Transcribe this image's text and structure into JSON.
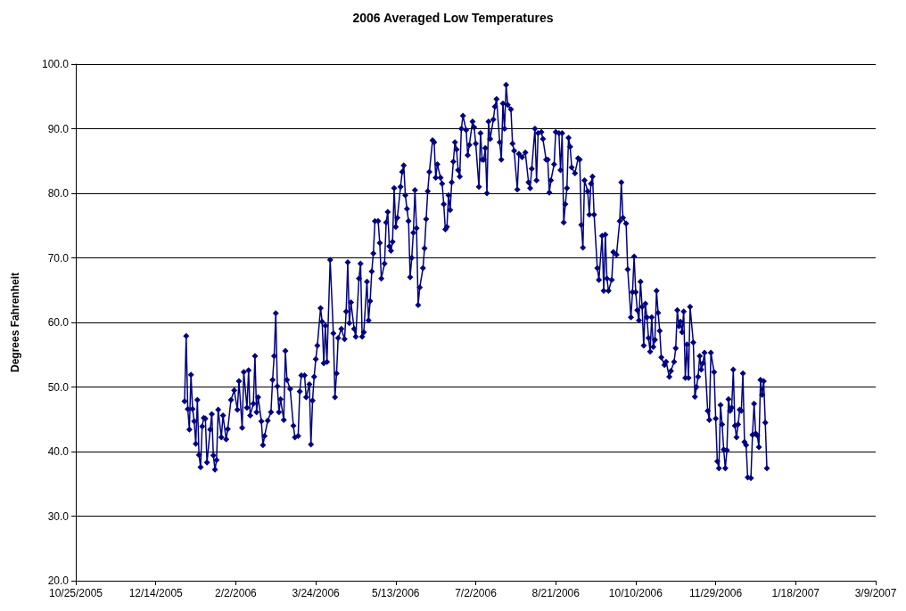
{
  "chart_data": {
    "type": "line",
    "title": "2006 Averaged Low Temperatures",
    "ylabel": "Degrees Fahrenheit",
    "x": [
      "2006-01-01",
      "2006-01-02",
      "2006-01-03",
      "2006-01-04",
      "2006-01-05",
      "2006-01-06",
      "2006-01-07",
      "2006-01-08",
      "2006-01-09",
      "2006-01-10",
      "2006-01-11",
      "2006-01-12",
      "2006-01-13",
      "2006-01-14",
      "2006-01-15",
      "2006-01-17",
      "2006-01-18",
      "2006-01-19",
      "2006-01-20",
      "2006-01-21",
      "2006-01-22",
      "2006-01-24",
      "2006-01-25",
      "2006-01-27",
      "2006-01-28",
      "2006-01-30",
      "2006-02-01",
      "2006-02-03",
      "2006-02-04",
      "2006-02-06",
      "2006-02-07",
      "2006-02-09",
      "2006-02-10",
      "2006-02-11",
      "2006-02-13",
      "2006-02-14",
      "2006-02-15",
      "2006-02-16",
      "2006-02-18",
      "2006-02-19",
      "2006-02-20",
      "2006-02-22",
      "2006-02-24",
      "2006-02-25",
      "2006-02-26",
      "2006-02-27",
      "2006-02-28",
      "2006-03-01",
      "2006-03-02",
      "2006-03-04",
      "2006-03-05",
      "2006-03-06",
      "2006-03-08",
      "2006-03-10",
      "2006-03-11",
      "2006-03-13",
      "2006-03-14",
      "2006-03-15",
      "2006-03-17",
      "2006-03-18",
      "2006-03-20",
      "2006-03-21",
      "2006-03-22",
      "2006-03-23",
      "2006-03-24",
      "2006-03-25",
      "2006-03-27",
      "2006-03-28",
      "2006-03-29",
      "2006-03-30",
      "2006-03-31",
      "2006-04-02",
      "2006-04-04",
      "2006-04-05",
      "2006-04-06",
      "2006-04-07",
      "2006-04-09",
      "2006-04-11",
      "2006-04-12",
      "2006-04-13",
      "2006-04-14",
      "2006-04-15",
      "2006-04-17",
      "2006-04-18",
      "2006-04-20",
      "2006-04-21",
      "2006-04-22",
      "2006-04-23",
      "2006-04-25",
      "2006-04-26",
      "2006-04-27",
      "2006-04-28",
      "2006-04-29",
      "2006-04-30",
      "2006-05-02",
      "2006-05-03",
      "2006-05-04",
      "2006-05-06",
      "2006-05-07",
      "2006-05-08",
      "2006-05-09",
      "2006-05-10",
      "2006-05-11",
      "2006-05-12",
      "2006-05-13",
      "2006-05-14",
      "2006-05-16",
      "2006-05-17",
      "2006-05-18",
      "2006-05-19",
      "2006-05-20",
      "2006-05-21",
      "2006-05-22",
      "2006-05-23",
      "2006-05-24",
      "2006-05-25",
      "2006-05-26",
      "2006-05-27",
      "2006-05-28",
      "2006-05-30",
      "2006-05-31",
      "2006-06-01",
      "2006-06-02",
      "2006-06-03",
      "2006-06-05",
      "2006-06-06",
      "2006-06-07",
      "2006-06-08",
      "2006-06-10",
      "2006-06-11",
      "2006-06-12",
      "2006-06-13",
      "2006-06-14",
      "2006-06-15",
      "2006-06-16",
      "2006-06-17",
      "2006-06-18",
      "2006-06-19",
      "2006-06-20",
      "2006-06-21",
      "2006-06-22",
      "2006-06-23",
      "2006-06-24",
      "2006-06-26",
      "2006-06-27",
      "2006-06-28",
      "2006-06-30",
      "2006-07-01",
      "2006-07-02",
      "2006-07-04",
      "2006-07-05",
      "2006-07-06",
      "2006-07-07",
      "2006-07-08",
      "2006-07-09",
      "2006-07-10",
      "2006-07-11",
      "2006-07-13",
      "2006-07-14",
      "2006-07-15",
      "2006-07-17",
      "2006-07-18",
      "2006-07-19",
      "2006-07-20",
      "2006-07-21",
      "2006-07-22",
      "2006-07-24",
      "2006-07-25",
      "2006-07-26",
      "2006-07-28",
      "2006-07-29",
      "2006-07-31",
      "2006-08-02",
      "2006-08-04",
      "2006-08-05",
      "2006-08-06",
      "2006-08-08",
      "2006-08-09",
      "2006-08-10",
      "2006-08-12",
      "2006-08-13",
      "2006-08-15",
      "2006-08-16",
      "2006-08-17",
      "2006-08-18",
      "2006-08-20",
      "2006-08-21",
      "2006-08-23",
      "2006-08-24",
      "2006-08-25",
      "2006-08-26",
      "2006-08-27",
      "2006-08-28",
      "2006-08-29",
      "2006-08-30",
      "2006-08-31",
      "2006-09-02",
      "2006-09-04",
      "2006-09-05",
      "2006-09-06",
      "2006-09-07",
      "2006-09-08",
      "2006-09-10",
      "2006-09-11",
      "2006-09-12",
      "2006-09-13",
      "2006-09-14",
      "2006-09-16",
      "2006-09-17",
      "2006-09-19",
      "2006-09-20",
      "2006-09-21",
      "2006-09-22",
      "2006-09-23",
      "2006-09-25",
      "2006-09-26",
      "2006-09-28",
      "2006-09-30",
      "2006-10-01",
      "2006-10-02",
      "2006-10-04",
      "2006-10-05",
      "2006-10-07",
      "2006-10-08",
      "2006-10-09",
      "2006-10-10",
      "2006-10-11",
      "2006-10-12",
      "2006-10-13",
      "2006-10-14",
      "2006-10-15",
      "2006-10-16",
      "2006-10-17",
      "2006-10-18",
      "2006-10-19",
      "2006-10-20",
      "2006-10-21",
      "2006-10-22",
      "2006-10-23",
      "2006-10-24",
      "2006-10-25",
      "2006-10-26",
      "2006-10-28",
      "2006-10-29",
      "2006-10-31",
      "2006-11-01",
      "2006-11-03",
      "2006-11-04",
      "2006-11-05",
      "2006-11-06",
      "2006-11-07",
      "2006-11-08",
      "2006-11-09",
      "2006-11-10",
      "2006-11-11",
      "2006-11-12",
      "2006-11-13",
      "2006-11-15",
      "2006-11-16",
      "2006-11-17",
      "2006-11-18",
      "2006-11-19",
      "2006-11-20",
      "2006-11-21",
      "2006-11-22",
      "2006-11-24",
      "2006-11-25",
      "2006-11-26",
      "2006-11-28",
      "2006-11-29",
      "2006-11-30",
      "2006-12-01",
      "2006-12-02",
      "2006-12-03",
      "2006-12-04",
      "2006-12-05",
      "2006-12-06",
      "2006-12-07",
      "2006-12-08",
      "2006-12-09",
      "2006-12-10",
      "2006-12-11",
      "2006-12-12",
      "2006-12-13",
      "2006-12-14",
      "2006-12-15",
      "2006-12-16",
      "2006-12-17",
      "2006-12-18",
      "2006-12-19",
      "2006-12-21",
      "2006-12-22",
      "2006-12-23",
      "2006-12-24",
      "2006-12-25",
      "2006-12-26",
      "2006-12-27",
      "2006-12-28",
      "2006-12-29",
      "2006-12-30",
      "2006-12-31"
    ],
    "series": [
      {
        "color": "#000080",
        "values": [
          47.8,
          57.9,
          46.6,
          43.4,
          51.9,
          46.6,
          44.7,
          41.2,
          48,
          39.5,
          37.6,
          43.9,
          45.2,
          45.1,
          38.3,
          43.4,
          45.8,
          39.4,
          37.2,
          38.7,
          46.5,
          42.2,
          45.6,
          41.9,
          43.5,
          48,
          49.5,
          46.5,
          50.9,
          43.7,
          52.3,
          46.8,
          52.6,
          45.6,
          47.4,
          54.8,
          46.1,
          48.4,
          44.7,
          41,
          42.4,
          44.8,
          46.1,
          51.1,
          54.8,
          61.4,
          50.1,
          46.1,
          48.1,
          44.9,
          55.6,
          51.1,
          49.7,
          44,
          42.2,
          42.4,
          49.3,
          51.8,
          51.8,
          48.4,
          50.4,
          41.1,
          47.9,
          51.6,
          54.3,
          56.4,
          62.2,
          60.1,
          53.7,
          59.5,
          53.9,
          69.7,
          58.3,
          48.4,
          52.1,
          57.6,
          59,
          57.4,
          61.7,
          69.3,
          59.9,
          63.1,
          59,
          57.8,
          66.8,
          69.1,
          57.8,
          58.5,
          66.3,
          60.3,
          63.3,
          67.9,
          70.7,
          75.7,
          75.7,
          72.3,
          66.8,
          69.1,
          75.5,
          77.1,
          71.8,
          71.1,
          72.5,
          80.8,
          74.8,
          76.2,
          81,
          83.3,
          84.3,
          79.7,
          77.6,
          75.7,
          67,
          70,
          73.9,
          80.5,
          74.6,
          62.7,
          65.4,
          68.4,
          71.5,
          76,
          80.3,
          83.3,
          88.2,
          87.9,
          82.4,
          84.5,
          82.4,
          81.5,
          78.3,
          74.4,
          74.8,
          79.7,
          77.4,
          81.7,
          84.9,
          87.9,
          86.8,
          83.6,
          82.6,
          90,
          92,
          89.8,
          85.9,
          87.5,
          91.1,
          90.2,
          87.7,
          81,
          89.3,
          85.2,
          85.2,
          87,
          80,
          91.1,
          88.4,
          91.4,
          93.4,
          94.6,
          87.9,
          85.2,
          93.9,
          90,
          96.8,
          93.7,
          93,
          87.7,
          86.6,
          80.6,
          86.1,
          85.6,
          86.3,
          81.7,
          80.8,
          83.8,
          90,
          82,
          89.3,
          89.5,
          88.4,
          85.2,
          85.2,
          80.1,
          82,
          84.5,
          89.5,
          89.3,
          83.6,
          89.3,
          75.5,
          78.3,
          80.8,
          88.6,
          87.2,
          84,
          83.1,
          85.4,
          85.2,
          75.1,
          71.6,
          82,
          80.3,
          76.7,
          81.5,
          82.6,
          76.7,
          68.4,
          66.6,
          73.4,
          64.9,
          73.6,
          66.8,
          64.9,
          66.6,
          70.9,
          70.5,
          75.7,
          81.7,
          76.2,
          75.3,
          68.2,
          60.8,
          64.7,
          70.2,
          64.7,
          61.9,
          60.3,
          66.3,
          62.4,
          56.4,
          62.9,
          60.8,
          57.6,
          55.5,
          60.8,
          56.2,
          57.3,
          64.9,
          61.5,
          58.7,
          54.6,
          53.4,
          53.9,
          51.6,
          52.5,
          53.9,
          56,
          61.9,
          59.4,
          60.1,
          58.5,
          61.7,
          51.4,
          56.6,
          51.4,
          62.4,
          56.9,
          48.5,
          50,
          51.6,
          54.8,
          52.7,
          53.7,
          55.3,
          46.3,
          44.9,
          55.3,
          52.3,
          45.1,
          38.5,
          37.4,
          47.2,
          44.2,
          40.3,
          37.4,
          40.2,
          48.1,
          46.3,
          46.8,
          52.7,
          44,
          42.2,
          44.2,
          46.5,
          46.3,
          52.1,
          41.5,
          41,
          36,
          35.9,
          42.6,
          47.4,
          42.8,
          42.5,
          40.7,
          51.1,
          48.8,
          50.9,
          44.5,
          37.4
        ]
      }
    ],
    "xlim": [
      "2005-10-25",
      "2007-03-09"
    ],
    "xticks": [
      {
        "value": "2005-10-25",
        "label": "10/25/2005"
      },
      {
        "value": "2005-12-14",
        "label": "12/14/2005"
      },
      {
        "value": "2006-02-02",
        "label": "2/2/2006"
      },
      {
        "value": "2006-03-24",
        "label": "3/24/2006"
      },
      {
        "value": "2006-05-13",
        "label": "5/13/2006"
      },
      {
        "value": "2006-07-02",
        "label": "7/2/2006"
      },
      {
        "value": "2006-08-21",
        "label": "8/21/2006"
      },
      {
        "value": "2006-10-10",
        "label": "10/10/2006"
      },
      {
        "value": "2006-11-29",
        "label": "11/29/2006"
      },
      {
        "value": "2007-01-18",
        "label": "1/18/2007"
      },
      {
        "value": "2007-03-09",
        "label": "3/9/2007"
      }
    ],
    "ylim": [
      20,
      100
    ],
    "yticks": [
      {
        "value": 20,
        "label": "20.0"
      },
      {
        "value": 30,
        "label": "30.0"
      },
      {
        "value": 40,
        "label": "40.0"
      },
      {
        "value": 50,
        "label": "50.0"
      },
      {
        "value": 60,
        "label": "60.0"
      },
      {
        "value": 70,
        "label": "70.0"
      },
      {
        "value": 80,
        "label": "80.0"
      },
      {
        "value": 90,
        "label": "90.0"
      },
      {
        "value": 100,
        "label": "100.0"
      }
    ],
    "grid": "y",
    "marker": "diamond",
    "line_style": "solid"
  }
}
